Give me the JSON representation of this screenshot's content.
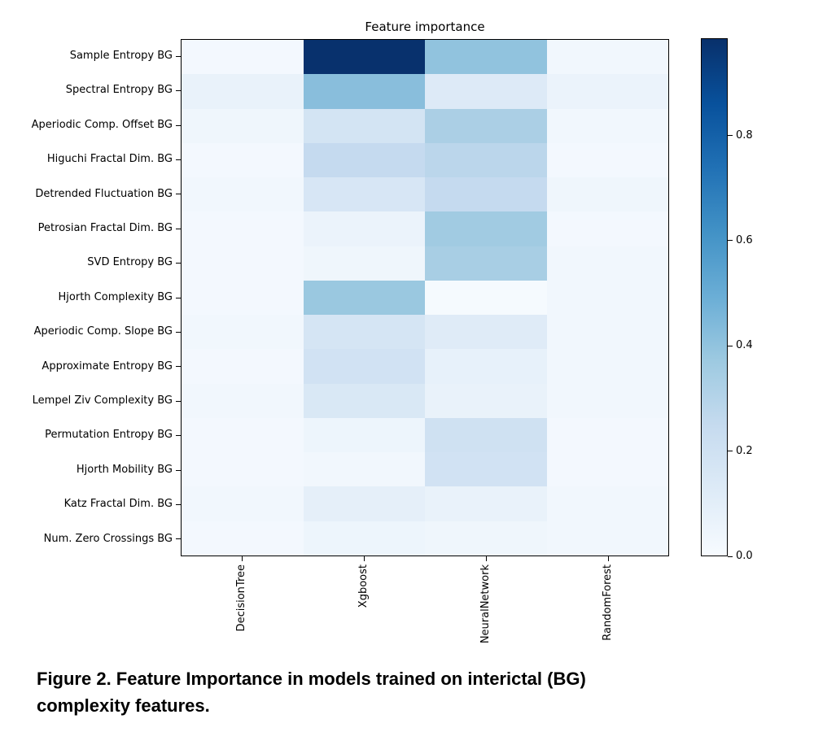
{
  "figure": {
    "caption": {
      "line1": "Figure 2. Feature Importance in models trained on interictal (BG)",
      "line2": "complexity features."
    }
  },
  "chart_data": {
    "type": "heatmap",
    "title": "Feature importance",
    "rows": [
      "Sample Entropy BG",
      "Spectral Entropy BG",
      "Aperiodic Comp. Offset BG",
      "Higuchi Fractal Dim. BG",
      "Detrended Fluctuation BG",
      "Petrosian Fractal Dim. BG",
      "SVD Entropy BG",
      "Hjorth Complexity BG",
      "Aperiodic Comp. Slope BG",
      "Approximate Entropy BG",
      "Lempel Ziv Complexity BG",
      "Permutation Entropy BG",
      "Hjorth Mobility BG",
      "Katz Fractal Dim. BG",
      "Num. Zero Crossings BG"
    ],
    "columns": [
      "DecisionTree",
      "Xgboost",
      "NeuralNetwork",
      "RandomForest"
    ],
    "values": [
      [
        0.02,
        0.98,
        0.4,
        0.03
      ],
      [
        0.07,
        0.42,
        0.13,
        0.06
      ],
      [
        0.04,
        0.18,
        0.33,
        0.03
      ],
      [
        0.02,
        0.25,
        0.28,
        0.02
      ],
      [
        0.03,
        0.16,
        0.25,
        0.04
      ],
      [
        0.02,
        0.06,
        0.36,
        0.02
      ],
      [
        0.02,
        0.04,
        0.34,
        0.03
      ],
      [
        0.02,
        0.38,
        0.01,
        0.03
      ],
      [
        0.03,
        0.17,
        0.12,
        0.03
      ],
      [
        0.02,
        0.19,
        0.08,
        0.03
      ],
      [
        0.03,
        0.15,
        0.07,
        0.03
      ],
      [
        0.02,
        0.05,
        0.2,
        0.02
      ],
      [
        0.02,
        0.03,
        0.19,
        0.02
      ],
      [
        0.03,
        0.09,
        0.07,
        0.03
      ],
      [
        0.02,
        0.05,
        0.04,
        0.03
      ]
    ],
    "vmin": 0.0,
    "vmax": 0.985,
    "colormap": "Blues",
    "colormap_stops": [
      {
        "t": 0.0,
        "color": "#f7fbff"
      },
      {
        "t": 0.125,
        "color": "#deebf7"
      },
      {
        "t": 0.25,
        "color": "#c6dbef"
      },
      {
        "t": 0.375,
        "color": "#9ecae1"
      },
      {
        "t": 0.5,
        "color": "#6baed6"
      },
      {
        "t": 0.625,
        "color": "#4292c6"
      },
      {
        "t": 0.75,
        "color": "#2171b5"
      },
      {
        "t": 0.875,
        "color": "#08519c"
      },
      {
        "t": 1.0,
        "color": "#08306b"
      }
    ],
    "colorbar": {
      "position": "right",
      "tick_values": [
        0.0,
        0.2,
        0.4,
        0.6,
        0.8
      ],
      "tick_labels": [
        "0.0",
        "0.2",
        "0.4",
        "0.6",
        "0.8"
      ]
    },
    "grid": false,
    "legend": false
  }
}
